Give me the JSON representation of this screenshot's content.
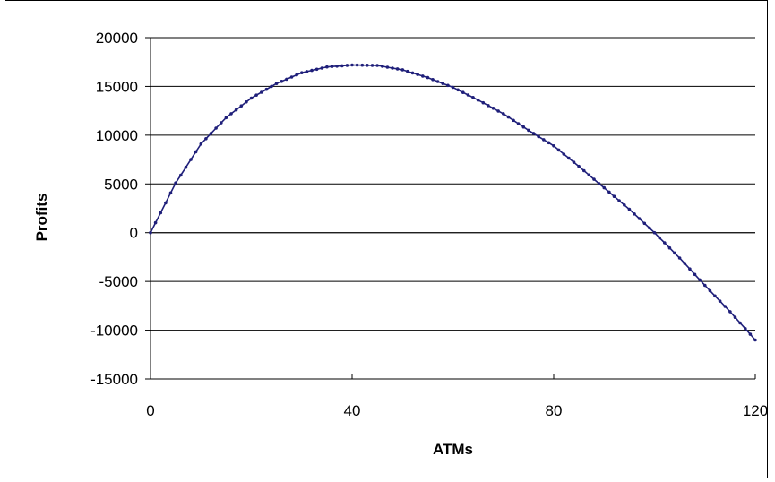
{
  "chart_data": {
    "type": "line",
    "title": "",
    "xlabel": "ATMs",
    "ylabel": "Profits",
    "xlim": [
      0,
      120
    ],
    "ylim": [
      -15000,
      20000
    ],
    "x_ticks": [
      "0",
      "40",
      "80",
      "120"
    ],
    "y_ticks": [
      "20000",
      "15000",
      "10000",
      "5000",
      "0",
      "-5000",
      "-10000",
      "-15000"
    ],
    "grid": "horizontal",
    "legend": "none",
    "series": [
      {
        "color": "#1F1F7A",
        "marker": "dot",
        "x": [
          0,
          5,
          10,
          15,
          20,
          25,
          30,
          35,
          40,
          45,
          50,
          55,
          60,
          65,
          70,
          75,
          80,
          85,
          90,
          95,
          100,
          105,
          110,
          115,
          120
        ],
        "y": [
          0,
          5100,
          9100,
          11800,
          13800,
          15300,
          16400,
          17000,
          17200,
          17150,
          16700,
          15900,
          14900,
          13600,
          12200,
          10500,
          8900,
          6800,
          4600,
          2400,
          0,
          -2600,
          -5400,
          -8100,
          -11000
        ]
      }
    ]
  }
}
